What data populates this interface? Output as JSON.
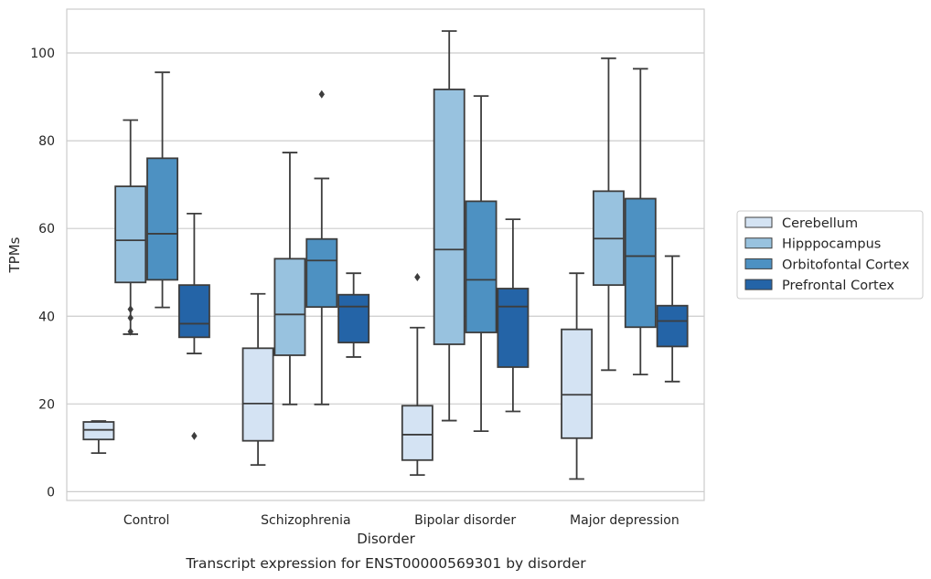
{
  "chart_data": {
    "type": "box",
    "caption": "Transcript expression for ENST00000569301 by disorder",
    "xlabel": "Disorder",
    "ylabel": "TPMs",
    "ylim": [
      -2,
      110
    ],
    "yticks": [
      0,
      20,
      40,
      60,
      80,
      100
    ],
    "grid": "horizontal",
    "legend_position": "right",
    "categories": [
      "Control",
      "Schizophrenia",
      "Bipolar disorder",
      "Major depression"
    ],
    "series": [
      {
        "name": "Cerebellum",
        "color": "#d4e3f3",
        "boxes": [
          {
            "whisker_low": 8.8,
            "q1": 11.9,
            "median": 14.1,
            "q3": 15.9,
            "whisker_high": 16.1,
            "outliers": []
          },
          {
            "whisker_low": 6.1,
            "q1": 11.6,
            "median": 20.1,
            "q3": 32.7,
            "whisker_high": 45.1,
            "outliers": []
          },
          {
            "whisker_low": 3.8,
            "q1": 7.2,
            "median": 13.0,
            "q3": 19.6,
            "whisker_high": 37.4,
            "outliers": [
              48.9
            ]
          },
          {
            "whisker_low": 2.9,
            "q1": 12.2,
            "median": 22.1,
            "q3": 37.0,
            "whisker_high": 49.8,
            "outliers": []
          }
        ]
      },
      {
        "name": "Hipppocampus",
        "color": "#98c2df",
        "boxes": [
          {
            "whisker_low": 35.9,
            "q1": 47.7,
            "median": 57.3,
            "q3": 69.6,
            "whisker_high": 84.7,
            "outliers": [
              36.5,
              39.6,
              41.6
            ]
          },
          {
            "whisker_low": 19.9,
            "q1": 31.1,
            "median": 40.4,
            "q3": 53.1,
            "whisker_high": 77.3,
            "outliers": []
          },
          {
            "whisker_low": 16.2,
            "q1": 33.6,
            "median": 55.2,
            "q3": 91.7,
            "whisker_high": 105.0,
            "outliers": []
          },
          {
            "whisker_low": 27.7,
            "q1": 47.1,
            "median": 57.7,
            "q3": 68.5,
            "whisker_high": 98.8,
            "outliers": []
          }
        ]
      },
      {
        "name": "Orbitofontal Cortex",
        "color": "#4d91c2",
        "boxes": [
          {
            "whisker_low": 42.0,
            "q1": 48.3,
            "median": 58.8,
            "q3": 76.0,
            "whisker_high": 95.6,
            "outliers": []
          },
          {
            "whisker_low": 19.9,
            "q1": 42.1,
            "median": 52.7,
            "q3": 57.6,
            "whisker_high": 71.4,
            "outliers": [
              90.6
            ]
          },
          {
            "whisker_low": 13.8,
            "q1": 36.3,
            "median": 48.3,
            "q3": 66.2,
            "whisker_high": 90.2,
            "outliers": []
          },
          {
            "whisker_low": 26.7,
            "q1": 37.5,
            "median": 53.7,
            "q3": 66.8,
            "whisker_high": 96.4,
            "outliers": []
          }
        ]
      },
      {
        "name": "Prefrontal Cortex",
        "color": "#2464a7",
        "boxes": [
          {
            "whisker_low": 31.5,
            "q1": 35.2,
            "median": 38.3,
            "q3": 47.1,
            "whisker_high": 63.4,
            "outliers": [
              12.7
            ]
          },
          {
            "whisker_low": 30.7,
            "q1": 34.0,
            "median": 42.2,
            "q3": 44.9,
            "whisker_high": 49.8,
            "outliers": []
          },
          {
            "whisker_low": 18.3,
            "q1": 28.4,
            "median": 42.2,
            "q3": 46.3,
            "whisker_high": 62.1,
            "outliers": []
          },
          {
            "whisker_low": 25.1,
            "q1": 33.1,
            "median": 38.9,
            "q3": 42.4,
            "whisker_high": 53.7,
            "outliers": []
          }
        ]
      }
    ]
  }
}
